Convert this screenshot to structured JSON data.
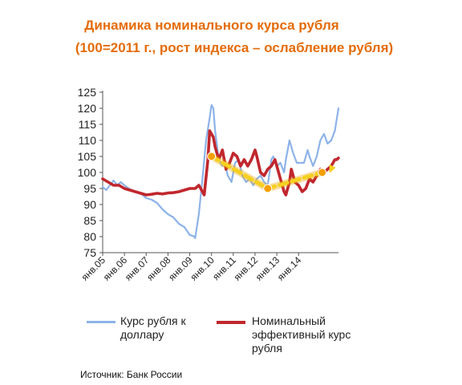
{
  "title_line1": "Динамика номинального курса рубля",
  "title_line2": "(100=2011 г., рост индекса – ослабление рубля)",
  "source": "Источник: Банк России",
  "chart_data": {
    "type": "line",
    "ylim": [
      75,
      125
    ],
    "yticks": [
      75,
      80,
      85,
      90,
      95,
      100,
      105,
      110,
      115,
      120,
      125
    ],
    "x_start": "янв.05",
    "x_end": "мар.14",
    "xticks": [
      "янв.05",
      "янв.06",
      "янв.07",
      "янв.08",
      "янв.09",
      "янв.10",
      "янв.11",
      "янв.12",
      "янв.13",
      "янв.14"
    ],
    "series": [
      {
        "name": "Курс рубля к доллару",
        "color": "#8DB3E8",
        "values": [
          [
            0,
            95.5
          ],
          [
            2,
            94.5
          ],
          [
            4,
            96
          ],
          [
            6,
            97.5
          ],
          [
            8,
            96
          ],
          [
            10,
            97
          ],
          [
            12,
            96
          ],
          [
            15,
            94.8
          ],
          [
            18,
            94
          ],
          [
            21,
            93.5
          ],
          [
            24,
            92
          ],
          [
            27,
            91.5
          ],
          [
            30,
            90.5
          ],
          [
            33,
            88.5
          ],
          [
            36,
            87
          ],
          [
            39,
            86
          ],
          [
            42,
            84
          ],
          [
            45,
            83
          ],
          [
            48,
            80.5
          ],
          [
            50,
            80.2
          ],
          [
            51,
            79.5
          ],
          [
            53,
            87
          ],
          [
            55,
            98
          ],
          [
            57,
            110
          ],
          [
            59,
            117
          ],
          [
            60,
            121
          ],
          [
            61,
            120
          ],
          [
            62,
            113
          ],
          [
            64,
            104
          ],
          [
            66,
            102
          ],
          [
            67,
            104
          ],
          [
            69,
            99
          ],
          [
            71,
            97
          ],
          [
            73,
            103
          ],
          [
            75,
            104
          ],
          [
            77,
            99
          ],
          [
            79,
            97
          ],
          [
            81,
            98
          ],
          [
            83,
            96
          ],
          [
            85,
            98
          ],
          [
            87,
            99
          ],
          [
            89,
            97
          ],
          [
            91,
            96
          ],
          [
            93,
            104
          ],
          [
            94,
            105
          ],
          [
            96,
            102
          ],
          [
            98,
            103
          ],
          [
            100,
            100
          ],
          [
            101,
            104
          ],
          [
            103,
            110
          ],
          [
            105,
            106
          ],
          [
            107,
            103
          ],
          [
            109,
            103
          ],
          [
            111,
            103
          ],
          [
            113,
            107
          ],
          [
            114,
            105
          ],
          [
            116,
            102
          ],
          [
            118,
            105
          ],
          [
            120,
            110
          ],
          [
            122,
            112
          ],
          [
            124,
            109
          ],
          [
            126,
            110
          ],
          [
            128,
            113
          ],
          [
            130,
            120
          ]
        ]
      },
      {
        "name": "Номинальный эффективный курс рубля",
        "color": "#C0272D",
        "values": [
          [
            0,
            98
          ],
          [
            3,
            97
          ],
          [
            6,
            96
          ],
          [
            9,
            96
          ],
          [
            12,
            95
          ],
          [
            15,
            94.5
          ],
          [
            18,
            94
          ],
          [
            21,
            93.5
          ],
          [
            24,
            93
          ],
          [
            27,
            93.2
          ],
          [
            30,
            93.5
          ],
          [
            33,
            93.3
          ],
          [
            36,
            93.6
          ],
          [
            39,
            93.7
          ],
          [
            42,
            94
          ],
          [
            45,
            94.5
          ],
          [
            48,
            95
          ],
          [
            50,
            95
          ],
          [
            51,
            95
          ],
          [
            53,
            96
          ],
          [
            55,
            94
          ],
          [
            56,
            93
          ],
          [
            58,
            104
          ],
          [
            59,
            113
          ],
          [
            61,
            111
          ],
          [
            62,
            108
          ],
          [
            64,
            104
          ],
          [
            66,
            107
          ],
          [
            68,
            101
          ],
          [
            70,
            103
          ],
          [
            72,
            106
          ],
          [
            74,
            105
          ],
          [
            76,
            102
          ],
          [
            78,
            104
          ],
          [
            80,
            102
          ],
          [
            82,
            104
          ],
          [
            84,
            107
          ],
          [
            85,
            105
          ],
          [
            87,
            100
          ],
          [
            89,
            99
          ],
          [
            91,
            101
          ],
          [
            93,
            102
          ],
          [
            95,
            104
          ],
          [
            96,
            102
          ],
          [
            98,
            98
          ],
          [
            100,
            94
          ],
          [
            101,
            93
          ],
          [
            103,
            97
          ],
          [
            104,
            101
          ],
          [
            106,
            97
          ],
          [
            108,
            96
          ],
          [
            110,
            94
          ],
          [
            112,
            95
          ],
          [
            114,
            98
          ],
          [
            116,
            97
          ],
          [
            118,
            99
          ],
          [
            120,
            101
          ],
          [
            122,
            100
          ],
          [
            124,
            101
          ],
          [
            126,
            102
          ],
          [
            127,
            103
          ],
          [
            128,
            104
          ],
          [
            129,
            104
          ],
          [
            130,
            104.5
          ]
        ]
      }
    ],
    "annotation": {
      "color": "#F5D020",
      "point_color": "#F4A000",
      "points": [
        [
          60,
          105
        ],
        [
          91,
          95
        ],
        [
          121,
          100
        ]
      ],
      "line_color": "#F5D020",
      "line_dash": true
    }
  }
}
